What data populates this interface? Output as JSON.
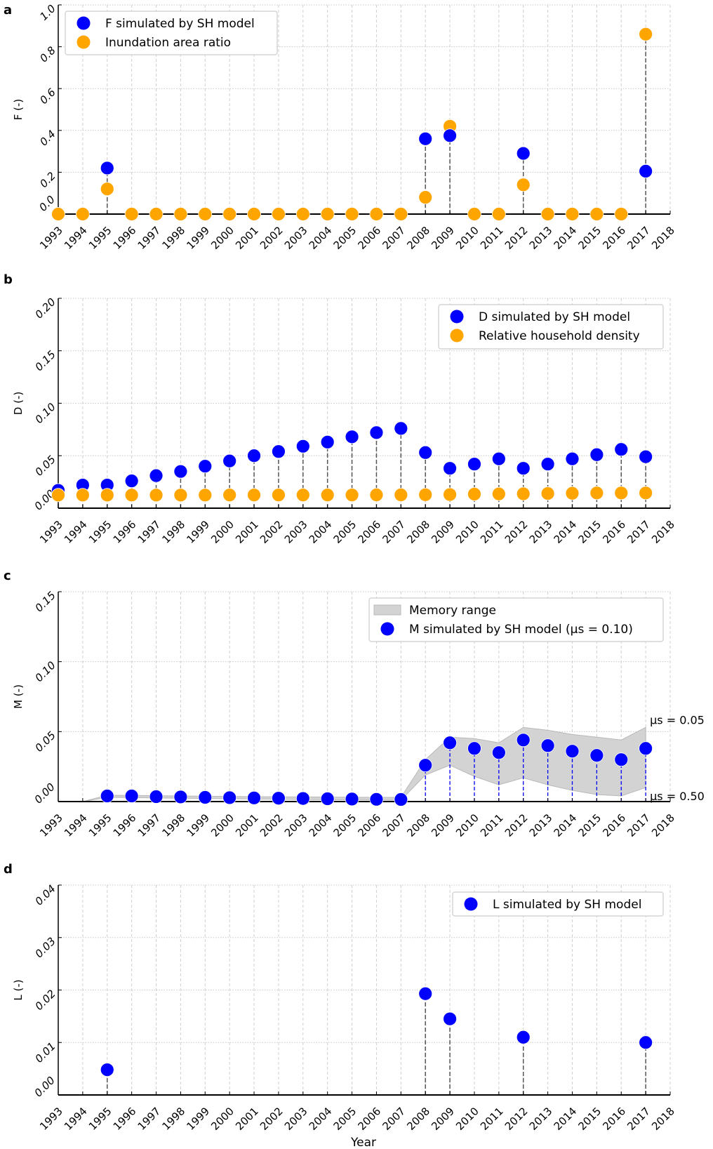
{
  "chart_data": [
    {
      "panel": "a",
      "type": "scatter",
      "title": "",
      "xlabel": "",
      "ylabel": "F (-)",
      "ylim": [
        0,
        1.0
      ],
      "yticks": [
        0,
        0.2,
        0.4,
        0.6,
        0.8,
        1.0
      ],
      "ytick_labels": [
        "0.0",
        "0.2",
        "0.4",
        "0.6",
        "0.8",
        "1.0"
      ],
      "xlim": [
        1993,
        2018
      ],
      "xtick_labels": [
        "1993",
        "1994",
        "1995",
        "1996",
        "1997",
        "1998",
        "1999",
        "2000",
        "2001",
        "2002",
        "2003",
        "2004",
        "2005",
        "2006",
        "2007",
        "2008",
        "2009",
        "2010",
        "2011",
        "2012",
        "2013",
        "2014",
        "2015",
        "2016",
        "2017",
        "2018"
      ],
      "grid": true,
      "legend_position": "top-left",
      "stems": "gray-dashed",
      "series": [
        {
          "name": "Inundation area ratio",
          "color": "#FFA500",
          "x": [
            1993,
            1994,
            1995,
            1996,
            1997,
            1998,
            1999,
            2000,
            2001,
            2002,
            2003,
            2004,
            2005,
            2006,
            2007,
            2008,
            2009,
            2010,
            2011,
            2012,
            2013,
            2014,
            2015,
            2016,
            2017
          ],
          "values": [
            0,
            0,
            0.12,
            0,
            0,
            0,
            0,
            0,
            0,
            0,
            0,
            0,
            0,
            0,
            0,
            0.08,
            0.42,
            0,
            0,
            0.14,
            0,
            0,
            0,
            0,
            0.86
          ]
        },
        {
          "name": "F simulated by SH model",
          "color": "#0000FF",
          "x": [
            1995,
            2008,
            2009,
            2012,
            2017
          ],
          "values": [
            0.22,
            0.36,
            0.375,
            0.29,
            0.205
          ]
        }
      ],
      "legend": [
        {
          "label": "F simulated by SH model",
          "color": "#0000FF",
          "kind": "marker"
        },
        {
          "label": "Inundation area ratio",
          "color": "#FFA500",
          "kind": "marker"
        }
      ]
    },
    {
      "panel": "b",
      "type": "scatter",
      "title": "",
      "xlabel": "",
      "ylabel": "D (-)",
      "ylim": [
        0,
        0.2
      ],
      "yticks": [
        0,
        0.05,
        0.1,
        0.15,
        0.2
      ],
      "ytick_labels": [
        "0.00",
        "0.05",
        "0.10",
        "0.15",
        "0.20"
      ],
      "xlim": [
        1993,
        2018
      ],
      "xtick_labels": [
        "1993",
        "1994",
        "1995",
        "1996",
        "1997",
        "1998",
        "1999",
        "2000",
        "2001",
        "2002",
        "2003",
        "2004",
        "2005",
        "2006",
        "2007",
        "2008",
        "2009",
        "2010",
        "2011",
        "2012",
        "2013",
        "2014",
        "2015",
        "2016",
        "2017",
        "2018"
      ],
      "grid": true,
      "legend_position": "top-right",
      "stems": "gray-dashed",
      "series": [
        {
          "name": "D simulated by SH model",
          "color": "#0000FF",
          "x": [
            1993,
            1994,
            1995,
            1996,
            1997,
            1998,
            1999,
            2000,
            2001,
            2002,
            2003,
            2004,
            2005,
            2006,
            2007,
            2008,
            2009,
            2010,
            2011,
            2012,
            2013,
            2014,
            2015,
            2016,
            2017
          ],
          "values": [
            0.017,
            0.022,
            0.022,
            0.026,
            0.031,
            0.035,
            0.04,
            0.045,
            0.05,
            0.054,
            0.059,
            0.063,
            0.068,
            0.072,
            0.076,
            0.053,
            0.038,
            0.042,
            0.047,
            0.038,
            0.042,
            0.047,
            0.051,
            0.056,
            0.049
          ]
        },
        {
          "name": "Relative household density",
          "color": "#FFA500",
          "x": [
            1993,
            1994,
            1995,
            1996,
            1997,
            1998,
            1999,
            2000,
            2001,
            2002,
            2003,
            2004,
            2005,
            2006,
            2007,
            2008,
            2009,
            2010,
            2011,
            2012,
            2013,
            2014,
            2015,
            2016,
            2017
          ],
          "values": [
            0.0125,
            0.0125,
            0.0125,
            0.0125,
            0.0125,
            0.0125,
            0.0125,
            0.0126,
            0.0126,
            0.0126,
            0.0126,
            0.0126,
            0.0126,
            0.0127,
            0.0127,
            0.0128,
            0.013,
            0.0134,
            0.0136,
            0.0137,
            0.014,
            0.0142,
            0.0145,
            0.0145,
            0.0145
          ]
        }
      ],
      "legend": [
        {
          "label": "D simulated by SH model",
          "color": "#0000FF",
          "kind": "marker"
        },
        {
          "label": "Relative household density",
          "color": "#FFA500",
          "kind": "marker"
        }
      ]
    },
    {
      "panel": "c",
      "type": "scatter",
      "title": "",
      "xlabel": "",
      "ylabel": "M (-)",
      "ylim": [
        0,
        0.15
      ],
      "yticks": [
        0,
        0.05,
        0.1,
        0.15
      ],
      "ytick_labels": [
        "0.00",
        "0.05",
        "0.10",
        "0.15"
      ],
      "xlim": [
        1993,
        2018
      ],
      "xtick_labels": [
        "1993",
        "1994",
        "1995",
        "1996",
        "1997",
        "1998",
        "1999",
        "2000",
        "2001",
        "2002",
        "2003",
        "2004",
        "2005",
        "2006",
        "2007",
        "2008",
        "2009",
        "2010",
        "2011",
        "2012",
        "2013",
        "2014",
        "2015",
        "2016",
        "2017",
        "2018"
      ],
      "grid": true,
      "legend_position": "top-right",
      "stems": "blue-dashed-from-2008",
      "range": {
        "name": "Memory range",
        "color": "#D3D3D3",
        "x": [
          1994,
          1995,
          1996,
          1997,
          1998,
          1999,
          2000,
          2001,
          2002,
          2003,
          2004,
          2005,
          2006,
          2007,
          2008,
          2009,
          2010,
          2011,
          2012,
          2013,
          2014,
          2015,
          2016,
          2017
        ],
        "upper": [
          0,
          0.0045,
          0.0044,
          0.0042,
          0.004,
          0.0038,
          0.0037,
          0.0035,
          0.0034,
          0.0033,
          0.0032,
          0.0031,
          0.003,
          0.003,
          0.03,
          0.046,
          0.045,
          0.042,
          0.053,
          0.051,
          0.048,
          0.046,
          0.044,
          0.053
        ],
        "lower": [
          0,
          0.003,
          0.0028,
          0.0026,
          0.0024,
          0.0022,
          0.002,
          0.0018,
          0.0016,
          0.0014,
          0.0013,
          0.0012,
          0.0011,
          0.001,
          0.019,
          0.026,
          0.018,
          0.012,
          0.017,
          0.012,
          0.008,
          0.005,
          0.004,
          0.01
        ]
      },
      "series": [
        {
          "name": "M simulated by SH model (μs = 0.10)",
          "color": "#0000FF",
          "x": [
            1995,
            1996,
            1997,
            1998,
            1999,
            2000,
            2001,
            2002,
            2003,
            2004,
            2005,
            2006,
            2007,
            2008,
            2009,
            2010,
            2011,
            2012,
            2013,
            2014,
            2015,
            2016,
            2017
          ],
          "values": [
            0.004,
            0.004,
            0.0035,
            0.0033,
            0.003,
            0.0028,
            0.0026,
            0.0024,
            0.0022,
            0.002,
            0.0018,
            0.0016,
            0.0015,
            0.026,
            0.042,
            0.038,
            0.035,
            0.044,
            0.04,
            0.036,
            0.033,
            0.03,
            0.038
          ]
        }
      ],
      "legend": [
        {
          "label": "Memory range",
          "color": "#D3D3D3",
          "kind": "patch"
        },
        {
          "label": "M simulated by SH model (μs = 0.10)",
          "color": "#0000FF",
          "kind": "marker"
        }
      ],
      "annotations": [
        {
          "text": "μs = 0.05",
          "at_year": 2017,
          "at_value": 0.053
        },
        {
          "text": "μs = 0.50",
          "at_year": 2017,
          "at_value": 0.0
        }
      ]
    },
    {
      "panel": "d",
      "type": "scatter",
      "title": "",
      "xlabel": "Year",
      "ylabel": "L (-)",
      "ylim": [
        0,
        0.04
      ],
      "yticks": [
        0,
        0.01,
        0.02,
        0.03,
        0.04
      ],
      "ytick_labels": [
        "0.00",
        "0.01",
        "0.02",
        "0.03",
        "0.04"
      ],
      "xlim": [
        1993,
        2018
      ],
      "xtick_labels": [
        "1993",
        "1994",
        "1995",
        "1996",
        "1997",
        "1998",
        "1999",
        "2000",
        "2001",
        "2002",
        "2003",
        "2004",
        "2005",
        "2006",
        "2007",
        "2008",
        "2009",
        "2010",
        "2011",
        "2012",
        "2013",
        "2014",
        "2015",
        "2016",
        "2017",
        "2018"
      ],
      "grid": true,
      "legend_position": "top-right",
      "stems": "gray-dashed",
      "series": [
        {
          "name": "L simulated by SH model",
          "color": "#0000FF",
          "x": [
            1995,
            2008,
            2009,
            2012,
            2017
          ],
          "values": [
            0.0048,
            0.0193,
            0.0145,
            0.011,
            0.01
          ]
        }
      ],
      "legend": [
        {
          "label": "L simulated by SH model",
          "color": "#0000FF",
          "kind": "marker"
        }
      ]
    }
  ]
}
